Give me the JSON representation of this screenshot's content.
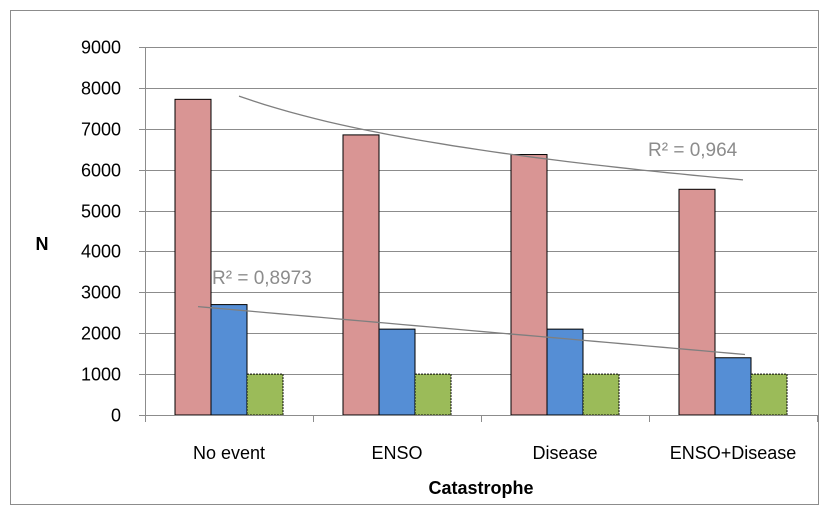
{
  "chart_data": {
    "type": "bar",
    "title": "",
    "xlabel": "Catastrophe",
    "ylabel": "N",
    "ylim": [
      0,
      9000
    ],
    "yticks": [
      0,
      1000,
      2000,
      3000,
      4000,
      5000,
      6000,
      7000,
      8000,
      9000
    ],
    "grid": true,
    "categories": [
      "No event",
      "ENSO",
      "Disease",
      "ENSO+Disease"
    ],
    "series": [
      {
        "color": "#d99594",
        "values": [
          7720,
          6850,
          6370,
          5520
        ]
      },
      {
        "color": "#558ed5",
        "values": [
          2700,
          2100,
          2100,
          1400
        ]
      },
      {
        "color": "#9bbb59",
        "values": [
          1000,
          1000,
          1000,
          1000
        ]
      }
    ],
    "trendlines": [
      {
        "series_index": 0,
        "type": "log",
        "label": "R² = 0,964",
        "start": 7800,
        "end": 5750,
        "color": "#7f7f7f"
      },
      {
        "series_index": 1,
        "type": "linear",
        "label": "R² = 0,8973",
        "start": 2650,
        "end": 1480,
        "color": "#7f7f7f"
      }
    ]
  }
}
